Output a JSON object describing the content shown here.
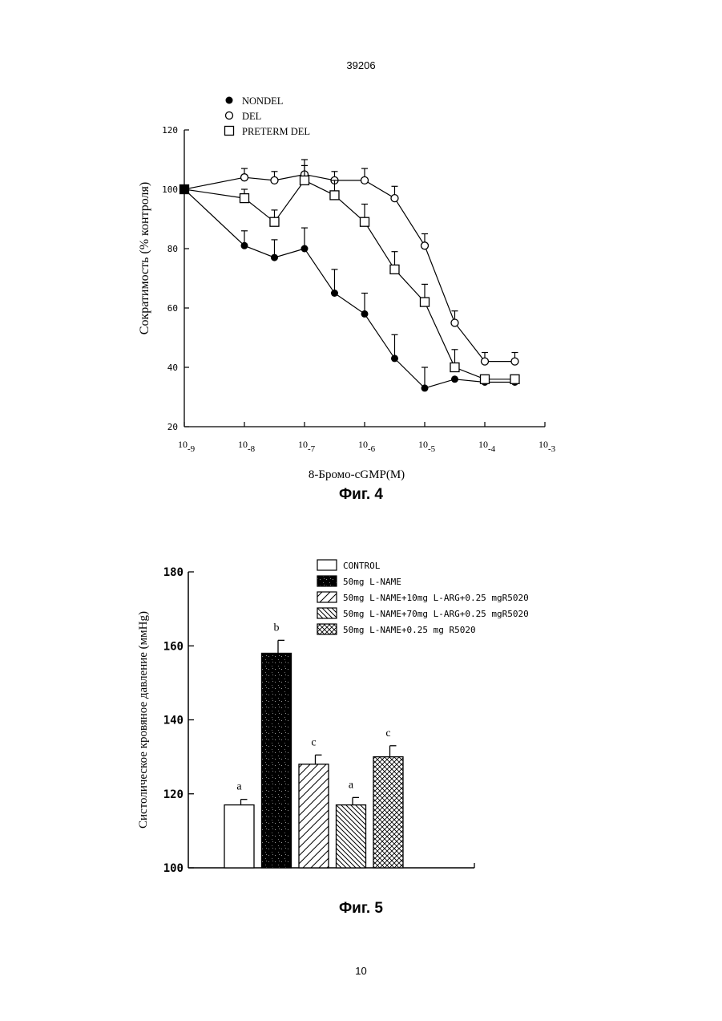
{
  "page": {
    "doc_number": "39206",
    "page_number": "10"
  },
  "fig4": {
    "caption": "Фиг. 4",
    "chart_data": {
      "type": "line",
      "xlabel": "8-Бромо-cGMP(M)",
      "ylabel": "Сократимость (% контроля)",
      "x_scale": "log",
      "xlim": [
        1e-09,
        0.001
      ],
      "ylim": [
        20,
        120
      ],
      "y_ticks": [
        "20",
        "40",
        "60",
        "80",
        "100",
        "120"
      ],
      "x_ticks": [
        {
          "base": "10",
          "exp": "-9"
        },
        {
          "base": "10",
          "exp": "-8"
        },
        {
          "base": "10",
          "exp": "-7"
        },
        {
          "base": "10",
          "exp": "-6"
        },
        {
          "base": "10",
          "exp": "-5"
        },
        {
          "base": "10",
          "exp": "-4"
        },
        {
          "base": "10",
          "exp": "-3"
        }
      ],
      "series": [
        {
          "name": "NONDEL",
          "marker": "filled-circle",
          "x": [
            1e-09,
            1e-08,
            3.16e-08,
            1e-07,
            3.16e-07,
            1e-06,
            3.16e-06,
            1e-05,
            3.16e-05,
            0.0001,
            0.000316
          ],
          "y": [
            100,
            81,
            77,
            80,
            65,
            58,
            43,
            33,
            36,
            35,
            35
          ],
          "error": [
            0,
            5,
            6,
            7,
            8,
            7,
            8,
            7,
            0,
            0,
            0
          ]
        },
        {
          "name": "DEL",
          "marker": "open-circle",
          "x": [
            1e-09,
            1e-08,
            3.16e-08,
            1e-07,
            3.16e-07,
            1e-06,
            3.16e-06,
            1e-05,
            3.16e-05,
            0.0001,
            0.000316
          ],
          "y": [
            100,
            104,
            103,
            105,
            103,
            103,
            97,
            81,
            55,
            42,
            42
          ],
          "error": [
            0,
            3,
            3,
            5,
            3,
            4,
            4,
            4,
            4,
            3,
            3
          ]
        },
        {
          "name": "PRETERM DEL",
          "marker": "open-square",
          "x": [
            1e-09,
            1e-08,
            3.16e-08,
            1e-07,
            3.16e-07,
            1e-06,
            3.16e-06,
            1e-05,
            3.16e-05,
            0.0001,
            0.000316
          ],
          "y": [
            100,
            97,
            89,
            103,
            98,
            89,
            73,
            62,
            40,
            36,
            36
          ],
          "error": [
            0,
            3,
            4,
            5,
            5,
            6,
            6,
            6,
            6,
            0,
            0
          ]
        }
      ]
    }
  },
  "fig5": {
    "caption": "Фиг. 5",
    "chart_data": {
      "type": "bar",
      "ylabel": "Систолическое кровяное давление (ммHg)",
      "ylim": [
        100,
        180
      ],
      "y_ticks": [
        "100",
        "120",
        "140",
        "160",
        "180"
      ],
      "categories": [
        "CONTROL",
        "50mg L-NAME",
        "50mg L-NAME+10mg L-ARG+0.25 mgR5020",
        "50mg L-NAME+70mg L-ARG+0.25 mgR5020",
        "50mg L-NAME+0.25 mg R5020"
      ],
      "legend_labels": [
        "CONTROL",
        "50mg L-NAME",
        "50mg L-NAME+10mg L-ARG+0.25 mgR5020",
        "50mg L-NAME+70mg L-ARG+0.25 mgR5020",
        "50mg L-NAME+0.25 mg R5020"
      ],
      "values": [
        117,
        158,
        128,
        117,
        130
      ],
      "error": [
        1.5,
        3.5,
        2.5,
        2,
        3
      ],
      "letters": [
        "a",
        "b",
        "c",
        "a",
        "c"
      ],
      "fills": [
        "white",
        "black-speckled",
        "diagonal-right",
        "diagonal-left",
        "crosshatch"
      ],
      "legend_position": "top-right"
    }
  }
}
